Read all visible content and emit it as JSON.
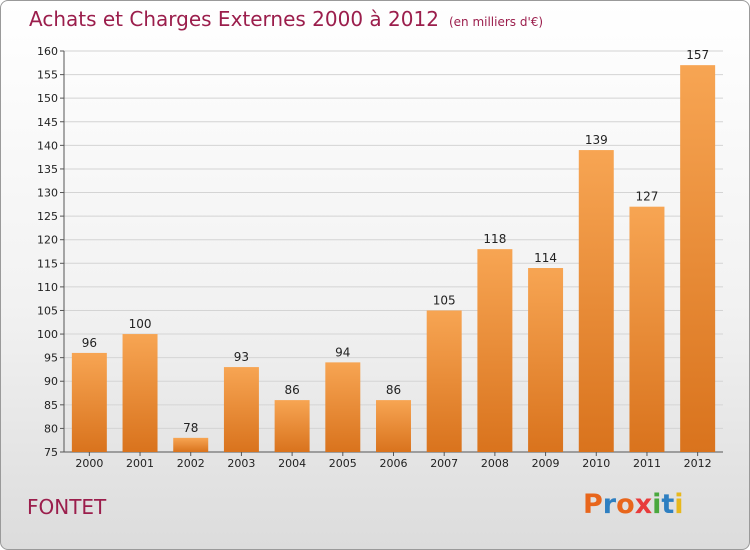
{
  "header": {
    "title": "Achats et Charges Externes 2000 à 2012",
    "subtitle": "(en milliers d'€)"
  },
  "footer": {
    "commune": "FONTET",
    "logo": "Proxiti"
  },
  "colors": {
    "title": "#9b1e4c",
    "bar_light": "#f7a553",
    "bar_dark": "#d9731d",
    "logo_letters": [
      "#e8661c",
      "#2e7fc1",
      "#e8661c",
      "#e83b3b",
      "#4aa83e",
      "#2e7fc1",
      "#e8b81c"
    ]
  },
  "chart_data": {
    "type": "bar",
    "title": "Achats et Charges Externes 2000 à 2012",
    "subtitle": "(en milliers d'€)",
    "categories": [
      "2000",
      "2001",
      "2002",
      "2003",
      "2004",
      "2005",
      "2006",
      "2007",
      "2008",
      "2009",
      "2010",
      "2011",
      "2012"
    ],
    "values": [
      96,
      100,
      78,
      93,
      86,
      94,
      86,
      105,
      118,
      114,
      139,
      127,
      157
    ],
    "ylim": [
      75,
      160
    ],
    "yticks": [
      75,
      80,
      85,
      90,
      95,
      100,
      105,
      110,
      115,
      120,
      125,
      130,
      135,
      140,
      145,
      150,
      155,
      160
    ],
    "grid": true,
    "data_labels": true
  }
}
